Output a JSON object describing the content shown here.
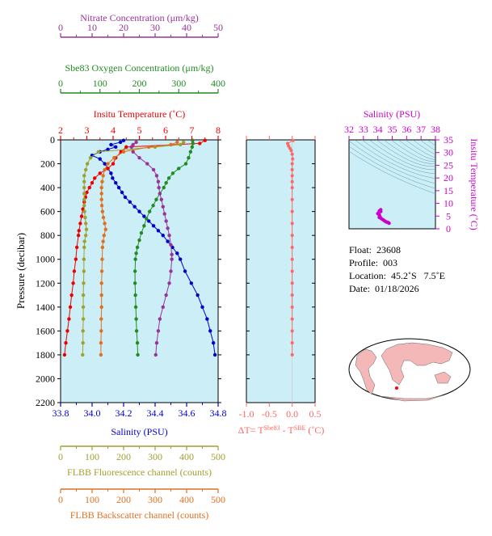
{
  "chart_data": [
    {
      "type": "scatter",
      "panel": "main-profile",
      "ylabel": "Pressure (decibar)",
      "y_ticks": [
        0,
        200,
        400,
        600,
        800,
        1000,
        1200,
        1400,
        1600,
        1800,
        2000,
        2200
      ],
      "ylim": [
        2200,
        0
      ],
      "axes": {
        "nitrate": {
          "label": "Nitrate Concentration (μm/kg)",
          "ticks": [
            0,
            10,
            20,
            30,
            40,
            50
          ],
          "range": [
            0,
            50
          ],
          "color": "#993399"
        },
        "oxygen": {
          "label": "Sbe83 Oxygen Concentration (μm/kg)",
          "ticks": [
            0,
            100,
            200,
            300,
            400
          ],
          "range": [
            0,
            400
          ],
          "color": "#228B22"
        },
        "temperature": {
          "label": "Insitu Temperature (˚C)",
          "ticks": [
            2,
            3,
            4,
            5,
            6,
            7,
            8
          ],
          "range": [
            2,
            8
          ],
          "color": "#EE0000"
        },
        "salinity": {
          "label": "Salinity (PSU)",
          "ticks": [
            "33.8",
            "34.0",
            "34.2",
            "34.4",
            "34.6",
            "34.8"
          ],
          "range": [
            33.8,
            34.8
          ],
          "color": "#0000CC"
        },
        "fluorescence": {
          "label": "FLBB Fluorescence channel (counts)",
          "ticks": [
            0,
            100,
            200,
            300,
            400,
            500
          ],
          "range": [
            0,
            500
          ],
          "color": "#A0A030"
        },
        "backscatter": {
          "label": "FLBB Backscatter channel (counts)",
          "ticks": [
            0,
            100,
            200,
            300,
            400,
            500
          ],
          "range": [
            0,
            500
          ],
          "color": "#E07020"
        }
      },
      "series": [
        {
          "key": "salinity",
          "axis": "salinity",
          "color": "#0000CC",
          "points": [
            [
              34.2,
              5
            ],
            [
              34.18,
              20
            ],
            [
              34.12,
              40
            ],
            [
              34.15,
              60
            ],
            [
              34.1,
              80
            ],
            [
              34.05,
              100
            ],
            [
              34.0,
              130
            ],
            [
              34.05,
              160
            ],
            [
              34.08,
              200
            ],
            [
              34.1,
              240
            ],
            [
              34.12,
              280
            ],
            [
              34.13,
              320
            ],
            [
              34.15,
              360
            ],
            [
              34.17,
              400
            ],
            [
              34.19,
              440
            ],
            [
              34.21,
              480
            ],
            [
              34.24,
              520
            ],
            [
              34.27,
              560
            ],
            [
              34.3,
              600
            ],
            [
              34.33,
              640
            ],
            [
              34.36,
              680
            ],
            [
              34.39,
              720
            ],
            [
              34.42,
              760
            ],
            [
              34.45,
              800
            ],
            [
              34.48,
              850
            ],
            [
              34.51,
              900
            ],
            [
              34.54,
              950
            ],
            [
              34.56,
              1000
            ],
            [
              34.59,
              1100
            ],
            [
              34.63,
              1200
            ],
            [
              34.67,
              1300
            ],
            [
              34.7,
              1400
            ],
            [
              34.73,
              1500
            ],
            [
              34.75,
              1600
            ],
            [
              34.77,
              1700
            ],
            [
              34.78,
              1800
            ]
          ]
        },
        {
          "key": "temperature",
          "axis": "temperature",
          "color": "#EE0000",
          "points": [
            [
              7.5,
              5
            ],
            [
              7.3,
              30
            ],
            [
              4.5,
              60
            ],
            [
              4.3,
              100
            ],
            [
              4.1,
              150
            ],
            [
              4.0,
              200
            ],
            [
              3.8,
              240
            ],
            [
              3.5,
              280
            ],
            [
              3.3,
              320
            ],
            [
              3.2,
              360
            ],
            [
              3.1,
              400
            ],
            [
              3.0,
              440
            ],
            [
              2.95,
              480
            ],
            [
              2.9,
              520
            ],
            [
              2.85,
              580
            ],
            [
              2.8,
              640
            ],
            [
              2.75,
              700
            ],
            [
              2.7,
              760
            ],
            [
              2.68,
              800
            ],
            [
              2.62,
              900
            ],
            [
              2.58,
              1000
            ],
            [
              2.52,
              1100
            ],
            [
              2.48,
              1200
            ],
            [
              2.42,
              1300
            ],
            [
              2.37,
              1400
            ],
            [
              2.32,
              1500
            ],
            [
              2.26,
              1600
            ],
            [
              2.2,
              1700
            ],
            [
              2.15,
              1800
            ]
          ]
        },
        {
          "key": "oxygen",
          "axis": "oxygen",
          "color": "#228B22",
          "points": [
            [
              335,
              5
            ],
            [
              336,
              30
            ],
            [
              334,
              60
            ],
            [
              330,
              100
            ],
            [
              325,
              150
            ],
            [
              318,
              200
            ],
            [
              300,
              240
            ],
            [
              285,
              280
            ],
            [
              275,
              320
            ],
            [
              268,
              360
            ],
            [
              262,
              400
            ],
            [
              252,
              450
            ],
            [
              243,
              500
            ],
            [
              235,
              550
            ],
            [
              226,
              600
            ],
            [
              218,
              660
            ],
            [
              212,
              720
            ],
            [
              205,
              780
            ],
            [
              200,
              840
            ],
            [
              195,
              900
            ],
            [
              192,
              950
            ],
            [
              190,
              1000
            ],
            [
              189,
              1100
            ],
            [
              189,
              1200
            ],
            [
              190,
              1300
            ],
            [
              191,
              1400
            ],
            [
              192,
              1500
            ],
            [
              193,
              1600
            ],
            [
              195,
              1700
            ],
            [
              196,
              1800
            ]
          ]
        },
        {
          "key": "nitrate",
          "axis": "nitrate",
          "color": "#993399",
          "points": [
            [
              24,
              20
            ],
            [
              23,
              40
            ],
            [
              22.5,
              60
            ],
            [
              23,
              100
            ],
            [
              25,
              150
            ],
            [
              27.5,
              200
            ],
            [
              29.5,
              250
            ],
            [
              30.5,
              300
            ],
            [
              31,
              350
            ],
            [
              31.2,
              400
            ],
            [
              31.5,
              450
            ],
            [
              32,
              500
            ],
            [
              32.5,
              560
            ],
            [
              33,
              620
            ],
            [
              33.5,
              680
            ],
            [
              34,
              740
            ],
            [
              34.5,
              800
            ],
            [
              35,
              880
            ],
            [
              35.3,
              960
            ],
            [
              35.3,
              1000
            ],
            [
              35,
              1100
            ],
            [
              34.5,
              1200
            ],
            [
              33.5,
              1300
            ],
            [
              32.5,
              1400
            ],
            [
              31.5,
              1500
            ],
            [
              31,
              1600
            ],
            [
              30.5,
              1700
            ],
            [
              30.2,
              1800
            ]
          ]
        },
        {
          "key": "fluorescence",
          "axis": "fluorescence",
          "color": "#A0A030",
          "points": [
            [
              390,
              20
            ],
            [
              380,
              40
            ],
            [
              300,
              60
            ],
            [
              120,
              100
            ],
            [
              95,
              150
            ],
            [
              85,
              200
            ],
            [
              80,
              250
            ],
            [
              75,
              300
            ],
            [
              75,
              350
            ],
            [
              75,
              400
            ],
            [
              75,
              450
            ],
            [
              75,
              500
            ],
            [
              75,
              550
            ],
            [
              76,
              600
            ],
            [
              78,
              650
            ],
            [
              80,
              700
            ],
            [
              82,
              750
            ],
            [
              80,
              800
            ],
            [
              76,
              850
            ],
            [
              75,
              900
            ],
            [
              74,
              1000
            ],
            [
              74,
              1100
            ],
            [
              73,
              1200
            ],
            [
              72,
              1300
            ],
            [
              72,
              1400
            ],
            [
              72,
              1500
            ],
            [
              71,
              1600
            ],
            [
              71,
              1700
            ],
            [
              70,
              1800
            ]
          ]
        },
        {
          "key": "backscatter",
          "axis": "backscatter",
          "color": "#E07020",
          "points": [
            [
              370,
              20
            ],
            [
              350,
              40
            ],
            [
              280,
              60
            ],
            [
              200,
              100
            ],
            [
              170,
              150
            ],
            [
              150,
              200
            ],
            [
              140,
              250
            ],
            [
              135,
              300
            ],
            [
              132,
              350
            ],
            [
              130,
              400
            ],
            [
              130,
              450
            ],
            [
              130,
              500
            ],
            [
              131,
              550
            ],
            [
              133,
              600
            ],
            [
              136,
              650
            ],
            [
              140,
              700
            ],
            [
              143,
              750
            ],
            [
              138,
              800
            ],
            [
              135,
              850
            ],
            [
              133,
              900
            ],
            [
              132,
              1000
            ],
            [
              131,
              1100
            ],
            [
              130,
              1200
            ],
            [
              130,
              1300
            ],
            [
              130,
              1400
            ],
            [
              129,
              1500
            ],
            [
              129,
              1600
            ],
            [
              128,
              1700
            ],
            [
              128,
              1800
            ]
          ]
        }
      ]
    },
    {
      "type": "scatter",
      "panel": "delta-t",
      "xlabel": "ΔT= T^Sbe83 - T^SBE (˚C)",
      "x_ticks": [
        "-1.0",
        "-0.5",
        "0.0",
        "0.5"
      ],
      "xlim": [
        -1.0,
        0.5
      ],
      "ylim": [
        2200,
        0
      ],
      "color": "#FF6666",
      "points": [
        [
          0.02,
          5
        ],
        [
          -0.1,
          30
        ],
        [
          -0.08,
          50
        ],
        [
          -0.05,
          70
        ],
        [
          -0.02,
          90
        ],
        [
          0.0,
          120
        ],
        [
          0.01,
          160
        ],
        [
          0.0,
          200
        ],
        [
          0.0,
          250
        ],
        [
          0.0,
          300
        ],
        [
          0.0,
          350
        ],
        [
          0.0,
          400
        ],
        [
          0.0,
          500
        ],
        [
          0.0,
          600
        ],
        [
          0.0,
          700
        ],
        [
          0.0,
          800
        ],
        [
          0.0,
          900
        ],
        [
          0.0,
          1000
        ],
        [
          0.0,
          1100
        ],
        [
          0.0,
          1200
        ],
        [
          0.0,
          1300
        ],
        [
          0.0,
          1400
        ],
        [
          0.0,
          1500
        ],
        [
          0.0,
          1600
        ],
        [
          0.0,
          1700
        ],
        [
          0.0,
          1800
        ]
      ]
    },
    {
      "type": "scatter",
      "panel": "ts-diagram",
      "xlabel": "Salinity (PSU)",
      "ylabel": "Insitu Temperature (˚C)",
      "x_ticks": [
        32,
        33,
        34,
        35,
        36,
        37,
        38
      ],
      "y_ticks": [
        0,
        5,
        10,
        15,
        20,
        25,
        30,
        35
      ],
      "xlim": [
        32,
        38
      ],
      "ylim": [
        0,
        35
      ],
      "color": "#CC00CC",
      "points": [
        [
          34.2,
          7.5
        ],
        [
          34.1,
          7.0
        ],
        [
          34.05,
          6.2
        ],
        [
          34.1,
          5.5
        ],
        [
          34.15,
          4.8
        ],
        [
          34.2,
          4.2
        ],
        [
          34.3,
          3.8
        ],
        [
          34.4,
          3.4
        ],
        [
          34.5,
          3.0
        ],
        [
          34.6,
          2.7
        ],
        [
          34.7,
          2.5
        ],
        [
          34.78,
          2.2
        ],
        [
          34.2,
          6.8
        ],
        [
          34.0,
          6.0
        ],
        [
          34.1,
          4.5
        ]
      ]
    }
  ],
  "float_info": {
    "float": "Float:  23608",
    "profile": "Profile:  003",
    "location": "Location:  45.2˚S   7.5˚E",
    "date": "Date:  01/18/2026"
  },
  "map": {
    "location": {
      "lat": -45.2,
      "lon": 7.5
    },
    "ocean_color": "#FFFFFF",
    "land_color": "#F4B8B8",
    "marker_color": "#FF0000"
  },
  "colors": {
    "plot_background": "#CCEEF7"
  }
}
